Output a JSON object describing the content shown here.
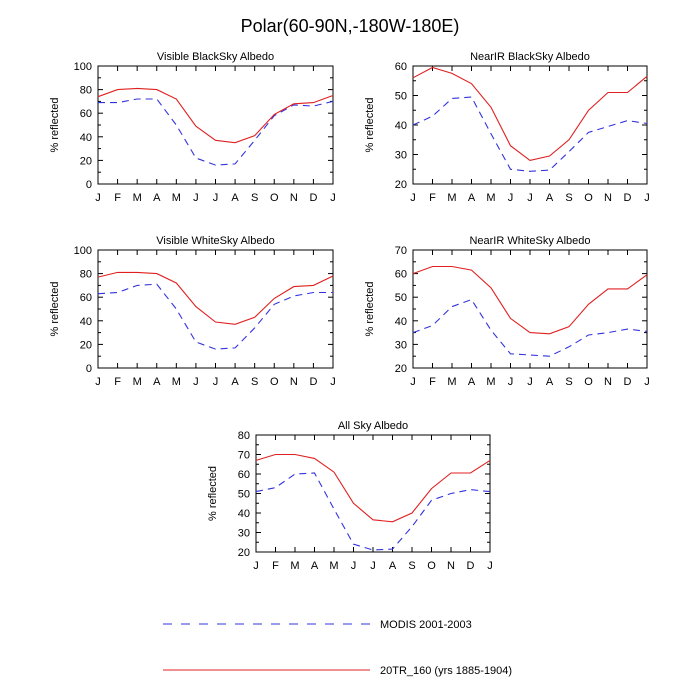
{
  "figure": {
    "title": "Polar(60-90N,-180W-180E)"
  },
  "legend": {
    "items": [
      {
        "label": "MODIS 2001-2003",
        "color": "#3333dd",
        "dash": "dashed"
      },
      {
        "label": "20TR_160 (yrs 1885-1904)",
        "color": "#e02020",
        "dash": "solid"
      }
    ]
  },
  "chart_data": [
    {
      "type": "line",
      "title": "Visible BlackSky Albedo",
      "ylabel": "% reflected",
      "xlabel": "",
      "x": [
        "J",
        "F",
        "M",
        "A",
        "M",
        "J",
        "J",
        "A",
        "S",
        "O",
        "N",
        "D",
        "J"
      ],
      "ylim": [
        0,
        100
      ],
      "yticks": [
        0,
        20,
        40,
        60,
        80,
        100
      ],
      "series": [
        {
          "name": "MODIS 2001-2003",
          "color": "#3333dd",
          "dash": "dashed",
          "values": [
            69,
            69,
            72,
            72,
            50,
            22,
            16,
            17,
            37,
            58,
            67,
            66,
            70
          ]
        },
        {
          "name": "20TR_160 (yrs 1885-1904)",
          "color": "#e02020",
          "dash": "solid",
          "values": [
            74,
            80,
            81,
            80,
            72,
            49,
            37,
            35,
            41,
            59,
            68,
            69,
            75
          ]
        }
      ]
    },
    {
      "type": "line",
      "title": "NearIR BlackSky Albedo",
      "ylabel": "% reflected",
      "xlabel": "",
      "x": [
        "J",
        "F",
        "M",
        "A",
        "M",
        "J",
        "J",
        "A",
        "S",
        "O",
        "N",
        "D",
        "J"
      ],
      "ylim": [
        20,
        60
      ],
      "yticks": [
        20,
        30,
        40,
        50,
        60
      ],
      "series": [
        {
          "name": "MODIS 2001-2003",
          "color": "#3333dd",
          "dash": "dashed",
          "values": [
            40,
            43,
            49,
            49.5,
            37,
            25,
            24.3,
            24.7,
            31,
            37.5,
            39.5,
            41.5,
            40.5
          ]
        },
        {
          "name": "20TR_160 (yrs 1885-1904)",
          "color": "#e02020",
          "dash": "solid",
          "values": [
            56,
            59.5,
            57.5,
            54,
            46,
            33,
            28,
            29.5,
            35,
            45,
            51,
            51,
            56.5
          ]
        }
      ]
    },
    {
      "type": "line",
      "title": "Visible WhiteSky Albedo",
      "ylabel": "% reflected",
      "xlabel": "",
      "x": [
        "J",
        "F",
        "M",
        "A",
        "M",
        "J",
        "J",
        "A",
        "S",
        "O",
        "N",
        "D",
        "J"
      ],
      "ylim": [
        0,
        100
      ],
      "yticks": [
        0,
        20,
        40,
        60,
        80,
        100
      ],
      "series": [
        {
          "name": "MODIS 2001-2003",
          "color": "#3333dd",
          "dash": "dashed",
          "values": [
            63,
            64,
            70,
            71,
            50,
            22,
            16,
            17,
            34,
            54,
            61,
            64,
            64
          ]
        },
        {
          "name": "20TR_160 (yrs 1885-1904)",
          "color": "#e02020",
          "dash": "solid",
          "values": [
            77,
            81,
            81,
            80,
            72,
            52,
            39,
            37,
            43,
            59,
            69,
            70,
            78
          ]
        }
      ]
    },
    {
      "type": "line",
      "title": "NearIR WhiteSky Albedo",
      "ylabel": "% reflected",
      "xlabel": "",
      "x": [
        "J",
        "F",
        "M",
        "A",
        "M",
        "J",
        "J",
        "A",
        "S",
        "O",
        "N",
        "D",
        "J"
      ],
      "ylim": [
        20,
        70
      ],
      "yticks": [
        20,
        30,
        40,
        50,
        60,
        70
      ],
      "series": [
        {
          "name": "MODIS 2001-2003",
          "color": "#3333dd",
          "dash": "dashed",
          "values": [
            35,
            38,
            46,
            49,
            36,
            26,
            25.5,
            25,
            29,
            34,
            35,
            36.5,
            35.5
          ]
        },
        {
          "name": "20TR_160 (yrs 1885-1904)",
          "color": "#e02020",
          "dash": "solid",
          "values": [
            60,
            63,
            63,
            61.5,
            54,
            41,
            35,
            34.5,
            37.5,
            47,
            53.5,
            53.5,
            59.5
          ]
        }
      ]
    },
    {
      "type": "line",
      "title": "All Sky Albedo",
      "ylabel": "% reflected",
      "xlabel": "",
      "x": [
        "J",
        "F",
        "M",
        "A",
        "M",
        "J",
        "J",
        "A",
        "S",
        "O",
        "N",
        "D",
        "J"
      ],
      "ylim": [
        20,
        80
      ],
      "yticks": [
        20,
        30,
        40,
        50,
        60,
        70,
        80
      ],
      "series": [
        {
          "name": "MODIS 2001-2003",
          "color": "#3333dd",
          "dash": "dashed",
          "values": [
            51,
            53,
            60,
            60.5,
            42,
            24,
            21,
            21.5,
            33,
            46.5,
            50,
            52,
            51
          ]
        },
        {
          "name": "20TR_160 (yrs 1885-1904)",
          "color": "#e02020",
          "dash": "solid",
          "values": [
            67,
            70,
            70,
            68,
            61,
            45,
            36.5,
            35.5,
            40,
            52.5,
            60.5,
            60.5,
            67
          ]
        }
      ]
    }
  ]
}
